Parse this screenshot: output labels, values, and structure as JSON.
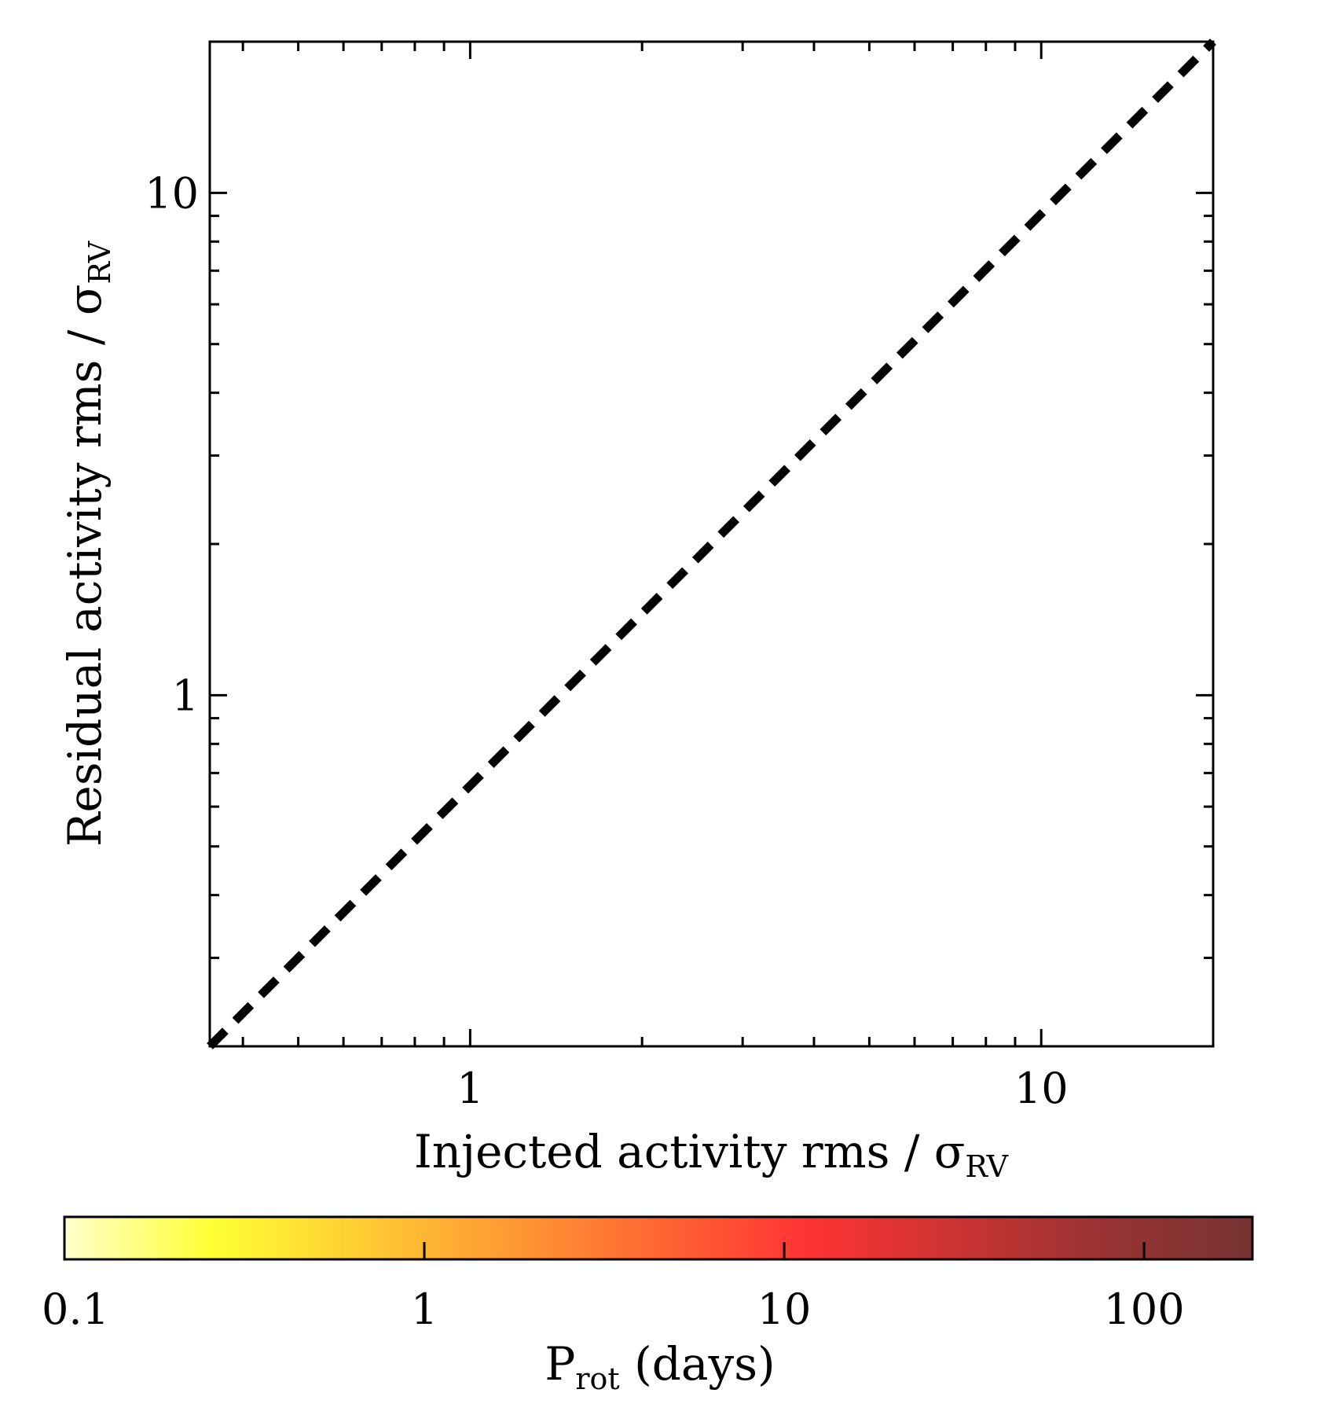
{
  "chart_data": {
    "type": "line",
    "xlabel": "Injected activity rms / σ",
    "xlabel_sub": "RV",
    "ylabel": "Residual activity rms / σ",
    "ylabel_sub": "RV",
    "xscale": "log",
    "yscale": "log",
    "xlim": [
      0.35,
      20
    ],
    "ylim": [
      0.2,
      20
    ],
    "x_ticks": [
      1,
      10
    ],
    "x_tick_labels": [
      "1",
      "10"
    ],
    "y_ticks": [
      1,
      10
    ],
    "y_tick_labels": [
      "1",
      "10"
    ],
    "series": [
      {
        "style": "dashed",
        "color": "#000000",
        "x": [
          0.35,
          20
        ],
        "y": [
          0.2,
          20
        ]
      }
    ],
    "grid": false,
    "colorbar": {
      "label": "P",
      "label_sub": "rot",
      "label_suffix": " (days)",
      "scale": "log",
      "range": [
        0.1,
        200
      ],
      "ticks": [
        0.1,
        1,
        10,
        100
      ],
      "tick_labels": [
        "0.1",
        "1",
        "10",
        "100"
      ],
      "colormap_stops": [
        "#ffffcc",
        "#ffff33",
        "#ffcc33",
        "#ff9933",
        "#ff6633",
        "#ff3333",
        "#cc3333",
        "#993333",
        "#773333"
      ]
    }
  }
}
